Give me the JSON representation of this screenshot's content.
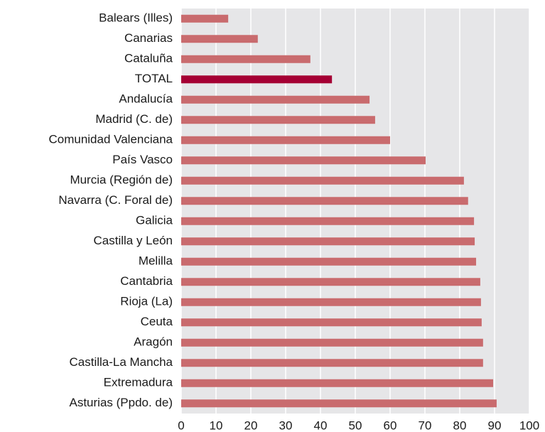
{
  "chart_data": {
    "type": "barh",
    "categories": [
      "Balears (Illes)",
      "Canarias",
      "Cataluña",
      "TOTAL",
      "Andalucía",
      "Madrid (C. de)",
      "Comunidad Valenciana",
      "País Vasco",
      "Murcia (Región de)",
      "Navarra (C. Foral de)",
      "Galicia",
      "Castilla y León",
      "Melilla",
      "Cantabria",
      "Rioja (La)",
      "Ceuta",
      "Aragón",
      "Castilla-La Mancha",
      "Extremadura",
      "Asturias (Ppdo. de)"
    ],
    "values": [
      13.5,
      22,
      37.1,
      43.3,
      54.1,
      55.7,
      60,
      70.2,
      81.2,
      82.4,
      84.1,
      84.3,
      84.7,
      85.9,
      86.1,
      86.3,
      86.7,
      86.7,
      89.6,
      90.6
    ],
    "colors": [
      "#c96b6e",
      "#c96b6e",
      "#c96b6e",
      "#a50034",
      "#c96b6e",
      "#c96b6e",
      "#c96b6e",
      "#c96b6e",
      "#c96b6e",
      "#c96b6e",
      "#c96b6e",
      "#c96b6e",
      "#c96b6e",
      "#c96b6e",
      "#c96b6e",
      "#c96b6e",
      "#c96b6e",
      "#c96b6e",
      "#c96b6e",
      "#c96b6e"
    ],
    "xlim": [
      0,
      100
    ],
    "xticks": [
      0,
      10,
      20,
      30,
      40,
      50,
      60,
      70,
      80,
      90,
      100
    ],
    "grid": true
  }
}
